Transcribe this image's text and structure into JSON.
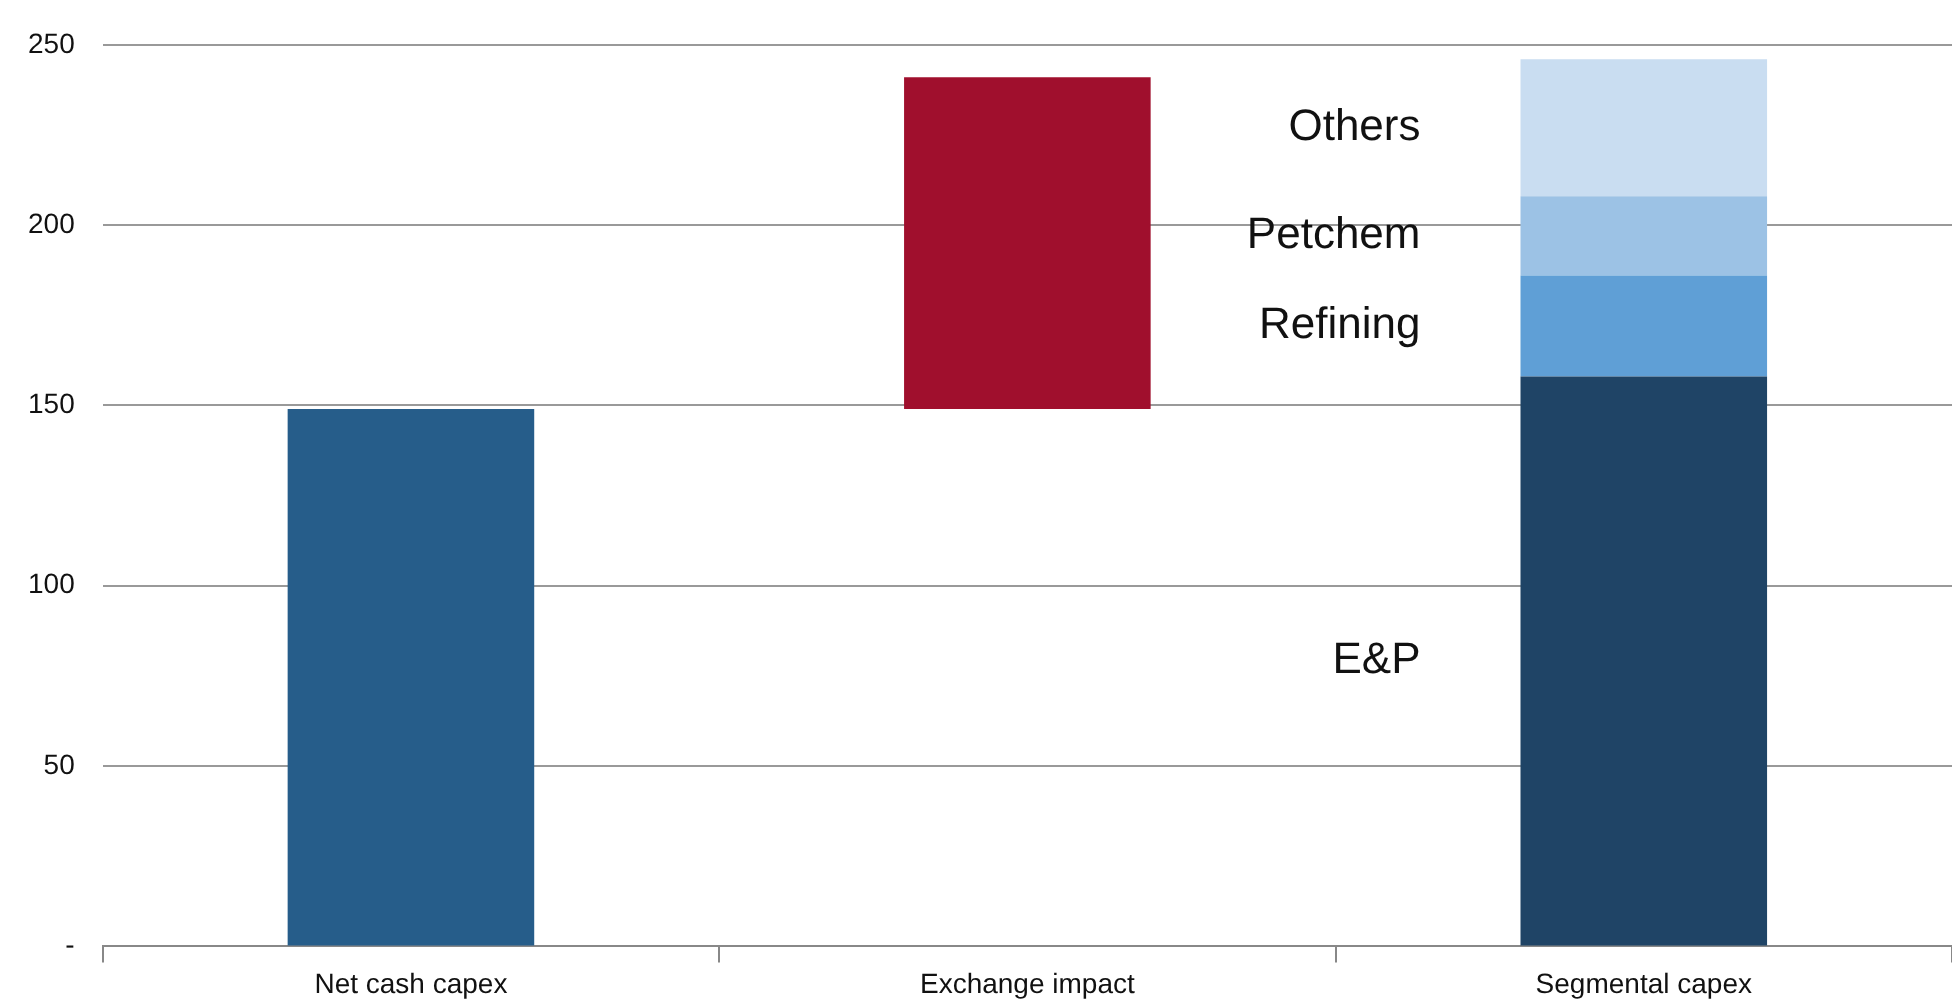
{
  "chart_data": {
    "type": "bar",
    "categories": [
      "Net cash capex",
      "Exchange impact",
      "Segmental capex"
    ],
    "stacked": true,
    "series": [
      {
        "color": "#265d8a",
        "values": [
          149,
          null,
          null
        ]
      },
      {
        "color": "#a00f2d",
        "values": [
          null,
          92,
          null
        ],
        "base": [
          null,
          149,
          null
        ]
      },
      {
        "name": "E&P",
        "color": "#1f4466",
        "values": [
          null,
          null,
          158
        ]
      },
      {
        "name": "Refining",
        "color": "#5f9fd6",
        "values": [
          null,
          null,
          28
        ]
      },
      {
        "name": "Petchem",
        "color": "#9cc2e5",
        "values": [
          null,
          null,
          22
        ]
      },
      {
        "name": "Others",
        "color": "#c9ddf1",
        "values": [
          null,
          null,
          38
        ]
      }
    ],
    "ylim": [
      0,
      250
    ],
    "yticks": [
      {
        "value": 0,
        "label": "-"
      },
      50,
      100,
      150,
      200,
      250
    ],
    "grid": "y",
    "legend": false
  }
}
